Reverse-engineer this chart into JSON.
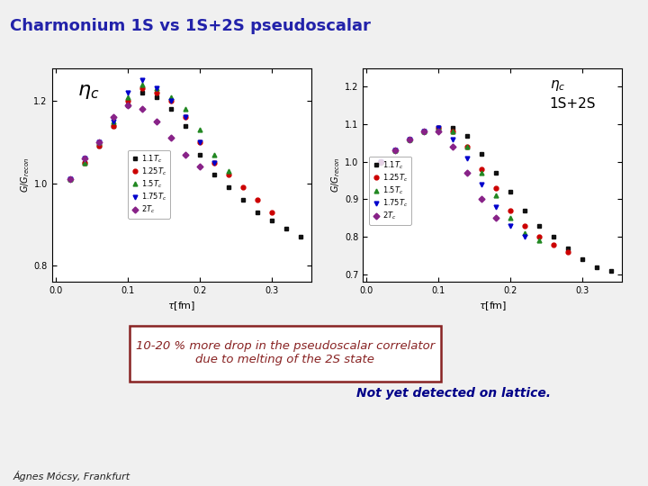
{
  "title": "Charmonium 1S vs 1S+2S pseudoscalar",
  "title_color": "#2222aa",
  "title_bg": "#ccccdd",
  "slide_bg": "#f0f0f0",
  "plot1_label": "$\\eta_c$",
  "xlabel": "$\\tau$[fm]",
  "ylabel": "$G/G_{recon}$",
  "legend_labels": [
    "$1.1T_c$",
    "$1.25T_c$",
    "$1.5T_c$",
    "$1.75T_c$",
    "$2T_c$"
  ],
  "colors": [
    "#111111",
    "#cc0000",
    "#228822",
    "#0000cc",
    "#882288"
  ],
  "markers": [
    "s",
    "o",
    "^",
    "v",
    "D"
  ],
  "markersize": 3.5,
  "tau": [
    0.02,
    0.04,
    0.06,
    0.08,
    0.1,
    0.12,
    0.14,
    0.16,
    0.18,
    0.2,
    0.22,
    0.24,
    0.26,
    0.28,
    0.3,
    0.32,
    0.34
  ],
  "plot1_data": [
    [
      1.01,
      1.05,
      1.09,
      1.14,
      1.19,
      1.22,
      1.21,
      1.18,
      1.14,
      1.07,
      1.02,
      0.99,
      0.96,
      0.93,
      0.91,
      0.89,
      0.87
    ],
    [
      1.01,
      1.05,
      1.09,
      1.14,
      1.2,
      1.23,
      1.22,
      1.2,
      1.16,
      1.1,
      1.05,
      1.02,
      0.99,
      0.96,
      0.93,
      null,
      null
    ],
    [
      1.01,
      1.05,
      1.1,
      1.15,
      1.21,
      1.24,
      1.23,
      1.21,
      1.18,
      1.13,
      1.07,
      1.03,
      null,
      null,
      null,
      null,
      null
    ],
    [
      1.01,
      1.06,
      1.1,
      1.15,
      1.22,
      1.25,
      1.23,
      1.2,
      1.16,
      1.1,
      1.05,
      null,
      null,
      null,
      null,
      null,
      null
    ],
    [
      1.01,
      1.06,
      1.1,
      1.16,
      1.19,
      1.18,
      1.15,
      1.11,
      1.07,
      1.04,
      null,
      null,
      null,
      null,
      null,
      null,
      null
    ]
  ],
  "plot2_data": [
    [
      1.0,
      1.03,
      1.06,
      1.08,
      1.09,
      1.09,
      1.07,
      1.02,
      0.97,
      0.92,
      0.87,
      0.83,
      0.8,
      0.77,
      0.74,
      0.72,
      0.71
    ],
    [
      1.0,
      1.03,
      1.06,
      1.08,
      1.09,
      1.08,
      1.04,
      0.98,
      0.93,
      0.87,
      0.83,
      0.8,
      0.78,
      0.76,
      null,
      null,
      null
    ],
    [
      1.0,
      1.03,
      1.06,
      1.08,
      1.09,
      1.08,
      1.04,
      0.97,
      0.91,
      0.85,
      0.81,
      0.79,
      null,
      null,
      null,
      null,
      null
    ],
    [
      1.0,
      1.03,
      1.06,
      1.08,
      1.09,
      1.06,
      1.01,
      0.94,
      0.88,
      0.83,
      0.8,
      null,
      null,
      null,
      null,
      null,
      null
    ],
    [
      1.0,
      1.03,
      1.06,
      1.08,
      1.08,
      1.04,
      0.97,
      0.9,
      0.85,
      null,
      null,
      null,
      null,
      null,
      null,
      null,
      null
    ]
  ],
  "plot1_ylim": [
    0.76,
    1.28
  ],
  "plot2_ylim": [
    0.68,
    1.25
  ],
  "plot1_yticks": [
    0.8,
    1.0,
    1.2
  ],
  "plot2_yticks": [
    0.7,
    0.8,
    0.9,
    1.0,
    1.1,
    1.2
  ],
  "xlim": [
    -0.005,
    0.355
  ],
  "xticks": [
    0.0,
    0.1,
    0.2,
    0.3
  ],
  "annotation_text": "10-20 % more drop in the pseudoscalar correlator\ndue to melting of the 2S state",
  "annotation_color": "#882222",
  "note_text": "Not yet detected on lattice.",
  "note_color": "#000088",
  "author_text": "Ágnes Mócsy, Frankfurt"
}
